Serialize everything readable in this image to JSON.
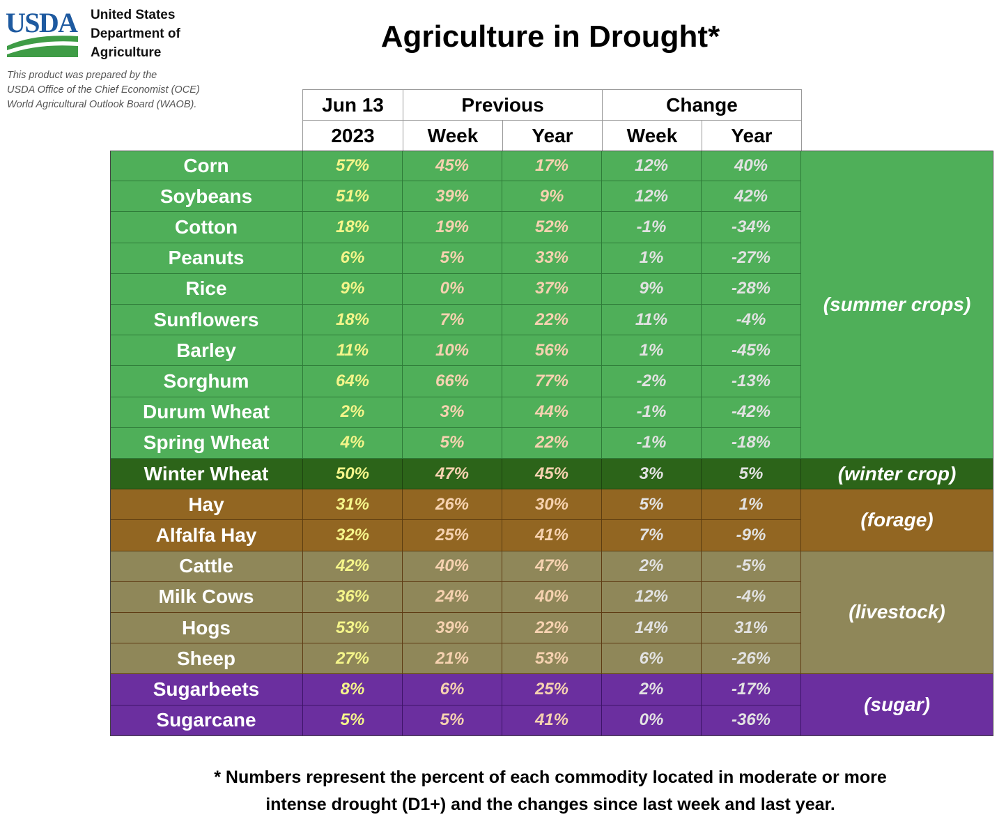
{
  "header": {
    "logo_text": "USDA",
    "agency_lines": [
      "United States",
      "Department of",
      "Agriculture"
    ],
    "prepared_lines": [
      "This product was prepared by the",
      "USDA Office of the Chief Economist (OCE)",
      "World Agricultural Outlook Board (WAOB)."
    ]
  },
  "chart_data": {
    "type": "table",
    "title": "Agriculture in Drought*",
    "column_header_top": [
      "Jun 13",
      "Previous",
      "Change"
    ],
    "column_header_bottom": [
      "2023",
      "Week",
      "Year",
      "Week",
      "Year"
    ],
    "groups": [
      {
        "label": "(summer crops)",
        "color": "#4faf59",
        "row_start": 0,
        "row_count": 10
      },
      {
        "label": "(winter crop)",
        "color": "#2c6419",
        "row_start": 10,
        "row_count": 1
      },
      {
        "label": "(forage)",
        "color": "#926622",
        "row_start": 11,
        "row_count": 2
      },
      {
        "label": "(livestock)",
        "color": "#8f8759",
        "row_start": 13,
        "row_count": 4
      },
      {
        "label": "(sugar)",
        "color": "#6b2f9f",
        "row_start": 17,
        "row_count": 2
      }
    ],
    "rows": [
      {
        "name": "Corn",
        "values": [
          "57%",
          "45%",
          "17%",
          "12%",
          "40%"
        ]
      },
      {
        "name": "Soybeans",
        "values": [
          "51%",
          "39%",
          "9%",
          "12%",
          "42%"
        ]
      },
      {
        "name": "Cotton",
        "values": [
          "18%",
          "19%",
          "52%",
          "-1%",
          "-34%"
        ]
      },
      {
        "name": "Peanuts",
        "values": [
          "6%",
          "5%",
          "33%",
          "1%",
          "-27%"
        ]
      },
      {
        "name": "Rice",
        "values": [
          "9%",
          "0%",
          "37%",
          "9%",
          "-28%"
        ]
      },
      {
        "name": "Sunflowers",
        "values": [
          "18%",
          "7%",
          "22%",
          "11%",
          "-4%"
        ]
      },
      {
        "name": "Barley",
        "values": [
          "11%",
          "10%",
          "56%",
          "1%",
          "-45%"
        ]
      },
      {
        "name": "Sorghum",
        "values": [
          "64%",
          "66%",
          "77%",
          "-2%",
          "-13%"
        ]
      },
      {
        "name": "Durum Wheat",
        "values": [
          "2%",
          "3%",
          "44%",
          "-1%",
          "-42%"
        ]
      },
      {
        "name": "Spring Wheat",
        "values": [
          "4%",
          "5%",
          "22%",
          "-1%",
          "-18%"
        ]
      },
      {
        "name": "Winter Wheat",
        "values": [
          "50%",
          "47%",
          "45%",
          "3%",
          "5%"
        ]
      },
      {
        "name": "Hay",
        "values": [
          "31%",
          "26%",
          "30%",
          "5%",
          "1%"
        ]
      },
      {
        "name": "Alfalfa Hay",
        "values": [
          "32%",
          "25%",
          "41%",
          "7%",
          "-9%"
        ]
      },
      {
        "name": "Cattle",
        "values": [
          "42%",
          "40%",
          "47%",
          "2%",
          "-5%"
        ]
      },
      {
        "name": "Milk Cows",
        "values": [
          "36%",
          "24%",
          "40%",
          "12%",
          "-4%"
        ]
      },
      {
        "name": "Hogs",
        "values": [
          "53%",
          "39%",
          "22%",
          "14%",
          "31%"
        ]
      },
      {
        "name": "Sheep",
        "values": [
          "27%",
          "21%",
          "53%",
          "6%",
          "-26%"
        ]
      },
      {
        "name": "Sugarbeets",
        "values": [
          "8%",
          "6%",
          "25%",
          "2%",
          "-17%"
        ]
      },
      {
        "name": "Sugarcane",
        "values": [
          "5%",
          "5%",
          "41%",
          "0%",
          "-36%"
        ]
      }
    ],
    "value_colors": [
      "#f5f58a",
      "#f6d2b0",
      "#f6d2b0",
      "#e2e2e2",
      "#e2e2e2"
    ],
    "logo_colors": {
      "text": "#1e5aa0",
      "swoosh": "#3f9c46"
    },
    "footnote_lines": [
      "* Numbers represent the percent of each commodity located in moderate or more",
      "intense drought (D1+) and the changes since last week and last year."
    ]
  }
}
